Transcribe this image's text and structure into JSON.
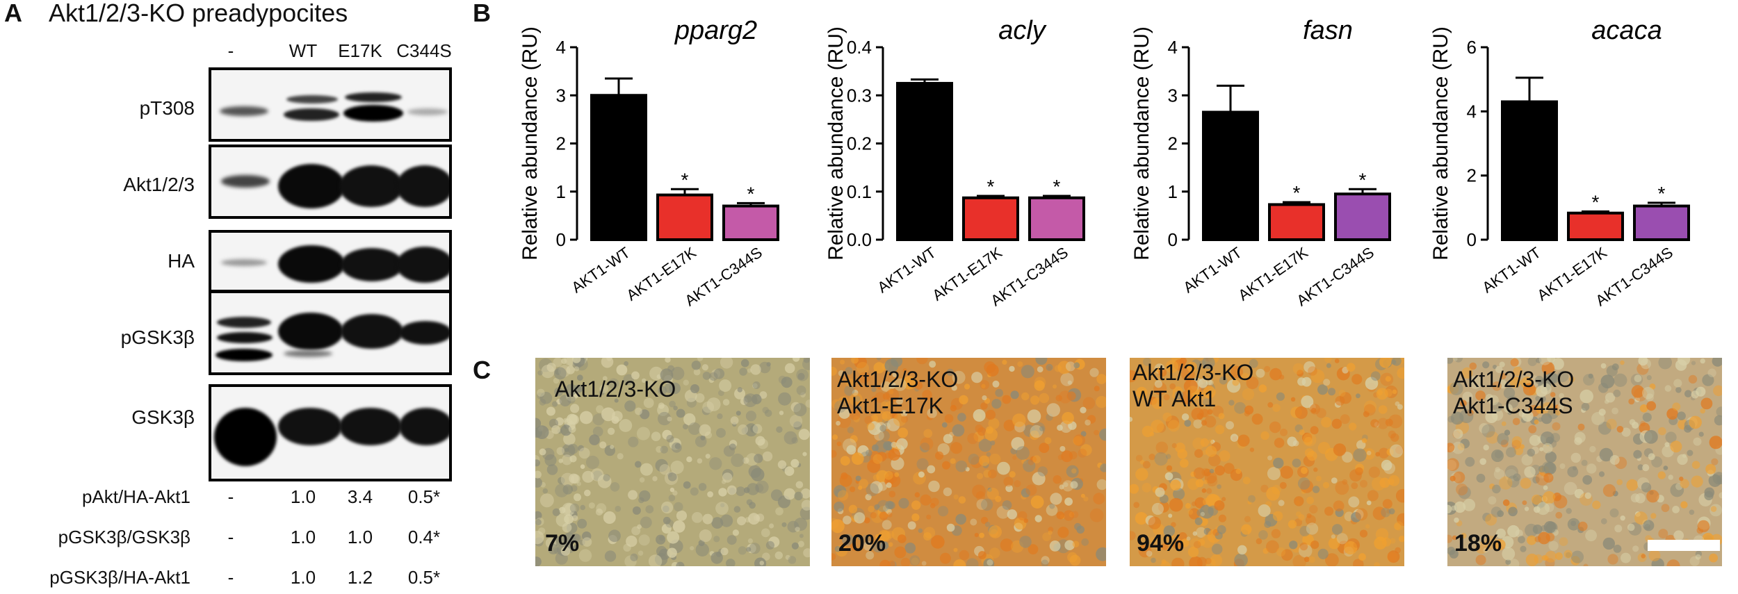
{
  "panelA": {
    "letter": "A",
    "title": "Akt1/2/3-KO preadypocites",
    "lanes": [
      "-",
      "WT",
      "E17K",
      "C344S"
    ],
    "blots": [
      "pT308",
      "Akt1/2/3",
      "HA",
      "pGSK3β",
      "GSK3β"
    ],
    "quant": [
      {
        "label": "pAkt/HA-Akt1",
        "values": [
          "-",
          "1.0",
          "3.4",
          "0.5*"
        ]
      },
      {
        "label": "pGSK3β/GSK3β",
        "values": [
          "-",
          "1.0",
          "1.0",
          "0.4*"
        ]
      },
      {
        "label": "pGSK3β/HA-Akt1",
        "values": [
          "-",
          "1.0",
          "1.2",
          "0.5*"
        ]
      }
    ]
  },
  "panelB": {
    "letter": "B"
  },
  "panelC": {
    "letter": "C",
    "photos": [
      {
        "label1": "Akt1/2/3-KO",
        "label2": "",
        "pct": "7%",
        "tint": "#b4aa7a"
      },
      {
        "label1": "Akt1/2/3-KO",
        "label2": "Akt1-E17K",
        "pct": "20%",
        "tint": "#d08c40"
      },
      {
        "label1": "Akt1/2/3-KO",
        "label2": "WT Akt1",
        "pct": "94%",
        "tint": "#d49a48"
      },
      {
        "label1": "Akt1/2/3-KO",
        "label2": "Akt1-C344S",
        "pct": "18%",
        "tint": "#c2aa80"
      }
    ]
  },
  "chart_data": [
    {
      "type": "bar",
      "title": "pparg2",
      "ylabel": "Relative abundance (RU)",
      "xlabel": "",
      "categories": [
        "AKT1-WT",
        "AKT1-E17K",
        "AKT1-C344S"
      ],
      "values": [
        3.0,
        0.93,
        0.7
      ],
      "errors": [
        0.35,
        0.12,
        0.06
      ],
      "significance": [
        "",
        "*",
        "*"
      ],
      "colors": [
        "#000000",
        "#e8302a",
        "#c45aa8"
      ],
      "ylim": [
        0,
        4
      ],
      "yticks": [
        "0",
        "1",
        "2",
        "3",
        "4"
      ]
    },
    {
      "type": "bar",
      "title": "acly",
      "ylabel": "Relative abundance (RU)",
      "xlabel": "",
      "categories": [
        "AKT1-WT",
        "AKT1-E17K",
        "AKT1-C344S"
      ],
      "values": [
        0.325,
        0.087,
        0.087
      ],
      "errors": [
        0.008,
        0.004,
        0.004
      ],
      "significance": [
        "",
        "*",
        "*"
      ],
      "colors": [
        "#000000",
        "#e8302a",
        "#c45aa8"
      ],
      "ylim": [
        0,
        0.4
      ],
      "yticks": [
        "0.0",
        "0.1",
        "0.2",
        "0.3",
        "0.4"
      ]
    },
    {
      "type": "bar",
      "title": "fasn",
      "ylabel": "Relative abundance (RU)",
      "xlabel": "",
      "categories": [
        "AKT1-WT",
        "AKT1-E17K",
        "AKT1-C344S"
      ],
      "values": [
        2.65,
        0.73,
        0.95
      ],
      "errors": [
        0.55,
        0.05,
        0.1
      ],
      "significance": [
        "",
        "*",
        "*"
      ],
      "colors": [
        "#000000",
        "#e8302a",
        "#9a4eb0"
      ],
      "ylim": [
        0,
        4
      ],
      "yticks": [
        "0",
        "1",
        "2",
        "3",
        "4"
      ]
    },
    {
      "type": "bar",
      "title": "acaca",
      "ylabel": "Relative abundance (RU)",
      "xlabel": "",
      "categories": [
        "AKT1-WT",
        "AKT1-E17K",
        "AKT1-C344S"
      ],
      "values": [
        4.3,
        0.83,
        1.05
      ],
      "errors": [
        0.75,
        0.05,
        0.1
      ],
      "significance": [
        "",
        "*",
        "*"
      ],
      "colors": [
        "#000000",
        "#e8302a",
        "#9a4eb0"
      ],
      "ylim": [
        0,
        6
      ],
      "yticks": [
        "0",
        "2",
        "4",
        "6"
      ]
    }
  ]
}
